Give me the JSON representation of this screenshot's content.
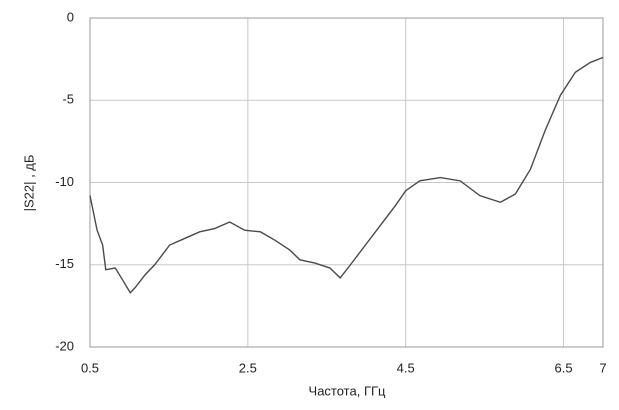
{
  "chart_data": {
    "type": "line",
    "x_label": "Частота, ГГц",
    "y_label": "|S22| , дБ",
    "x": [
      0.5,
      0.59,
      0.66,
      0.7,
      0.82,
      0.91,
      1.01,
      1.07,
      1.2,
      1.32,
      1.51,
      1.7,
      1.89,
      2.08,
      2.27,
      2.46,
      2.66,
      2.84,
      3.03,
      3.16,
      3.35,
      3.54,
      3.67,
      3.8,
      3.99,
      4.18,
      4.37,
      4.5,
      4.68,
      4.94,
      5.19,
      5.44,
      5.7,
      5.89,
      6.08,
      6.27,
      6.46,
      6.65,
      6.84,
      7.0
    ],
    "values": [
      -10.8,
      -12.9,
      -13.8,
      -15.3,
      -15.2,
      -15.9,
      -16.7,
      -16.4,
      -15.6,
      -15.0,
      -13.8,
      -13.4,
      -13.0,
      -12.8,
      -12.4,
      -12.9,
      -13.0,
      -13.5,
      -14.1,
      -14.7,
      -14.9,
      -15.2,
      -15.8,
      -15.0,
      -13.8,
      -12.6,
      -11.4,
      -10.5,
      -9.9,
      -9.7,
      -9.9,
      -10.8,
      -11.2,
      -10.7,
      -9.2,
      -6.8,
      -4.7,
      -3.3,
      -2.7,
      -2.4
    ],
    "color": "#4a4a4a",
    "xlim": [
      0.5,
      7
    ],
    "xticks": [
      0.5,
      2.5,
      4.5,
      6.5,
      7
    ],
    "ylim": [
      -20,
      0
    ],
    "yticks": [
      0,
      -5,
      -10,
      -15,
      -20
    ],
    "grid": true
  }
}
